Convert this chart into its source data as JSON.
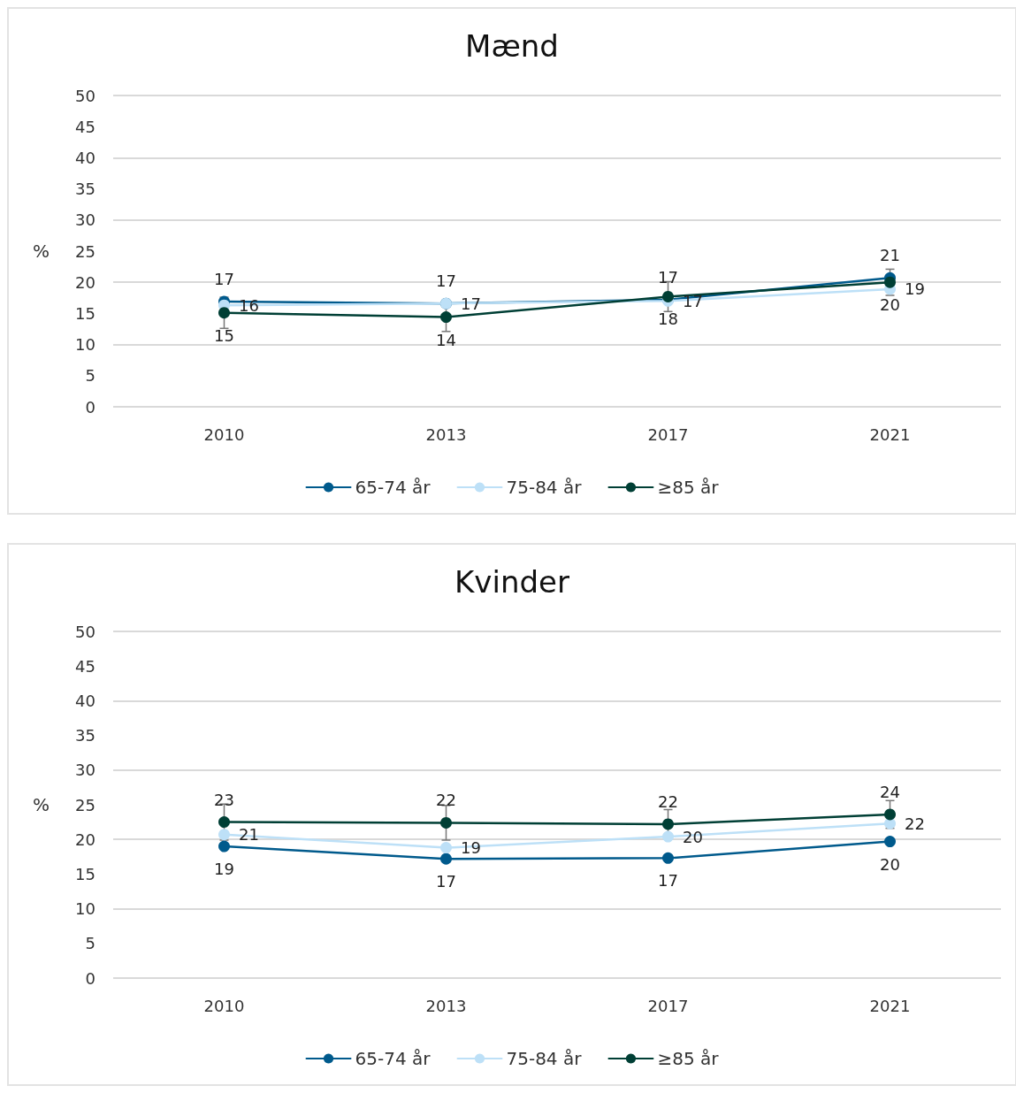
{
  "chart_data": [
    {
      "type": "line",
      "title": "Mænd",
      "ylabel": "%",
      "categories": [
        "2010",
        "2013",
        "2017",
        "2021"
      ],
      "ylim": [
        0,
        50
      ],
      "yticks": [
        0,
        5,
        10,
        15,
        20,
        25,
        30,
        35,
        40,
        45,
        50
      ],
      "grid": "y",
      "legend": "bottom",
      "marker": "circle",
      "line_style": "solid",
      "series": [
        {
          "name": "65-74 år",
          "color": "#005a8c",
          "values": [
            16.9,
            16.6,
            17.2,
            20.7
          ],
          "value_labels": [
            "17",
            "17",
            "17",
            "21"
          ]
        },
        {
          "name": "75-84 år",
          "color": "#bde0f7",
          "values": [
            16.3,
            16.6,
            17.0,
            18.9
          ],
          "value_labels": [
            "16",
            "17",
            "17",
            "19"
          ]
        },
        {
          "name": "≥85 år",
          "color": "#003f35",
          "values": [
            15.1,
            14.4,
            17.7,
            20.0
          ],
          "value_labels": [
            "15",
            "14",
            "18",
            "20"
          ],
          "errors": [
            2.5,
            2.3,
            2.4,
            2.1
          ]
        }
      ]
    },
    {
      "type": "line",
      "title": "Kvinder",
      "ylabel": "%",
      "categories": [
        "2010",
        "2013",
        "2017",
        "2021"
      ],
      "ylim": [
        0,
        50
      ],
      "yticks": [
        0,
        5,
        10,
        15,
        20,
        25,
        30,
        35,
        40,
        45,
        50
      ],
      "grid": "y",
      "legend": "bottom",
      "marker": "circle",
      "line_style": "solid",
      "series": [
        {
          "name": "65-74 år",
          "color": "#005a8c",
          "values": [
            19.0,
            17.2,
            17.3,
            19.7
          ],
          "value_labels": [
            "19",
            "17",
            "17",
            "20"
          ]
        },
        {
          "name": "75-84 år",
          "color": "#bde0f7",
          "values": [
            20.7,
            18.8,
            20.4,
            22.3
          ],
          "value_labels": [
            "21",
            "19",
            "20",
            "22"
          ]
        },
        {
          "name": "≥85 år",
          "color": "#003f35",
          "values": [
            22.5,
            22.4,
            22.2,
            23.6
          ],
          "value_labels": [
            "23",
            "22",
            "22",
            "24"
          ],
          "errors": [
            2.6,
            2.5,
            2.1,
            2.0
          ]
        }
      ]
    }
  ]
}
